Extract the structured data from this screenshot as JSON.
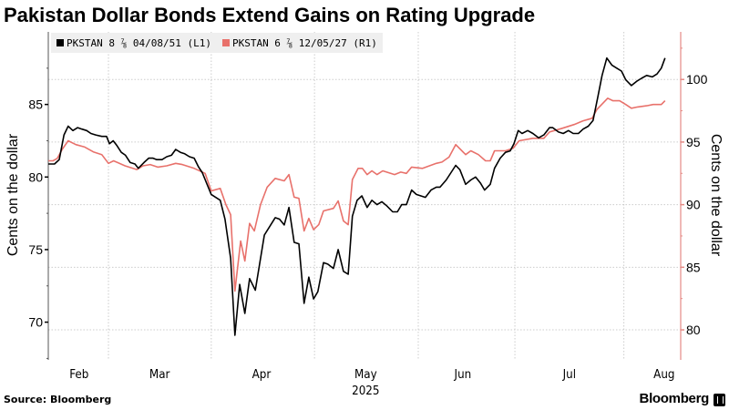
{
  "title": "Pakistan Dollar Bonds Extend Gains on Rating Upgrade",
  "source": "Source: Bloomberg",
  "brand": "Bloomberg",
  "colors": {
    "l1": "#000000",
    "r1": "#e8716b",
    "right_axis": "#e58a85",
    "grid": "#cccccc"
  },
  "chart_data": {
    "type": "line",
    "title": "Pakistan Dollar Bonds Extend Gains on Rating Upgrade",
    "x_unit": "trading days since start of series",
    "xlim": [
      0,
      133.5
    ],
    "x_ticks": [
      {
        "label": "Feb",
        "pos": 6.5
      },
      {
        "label": "Mar",
        "pos": 23.5
      },
      {
        "label": "Apr",
        "pos": 45
      },
      {
        "label": "May",
        "pos": 67
      },
      {
        "label": "Jun",
        "pos": 87.5
      },
      {
        "label": "Jul",
        "pos": 110
      },
      {
        "label": "Aug",
        "pos": 130
      }
    ],
    "x_year_label": {
      "label": "2025",
      "pos": 67
    },
    "month_boundaries": [
      12.7,
      34.4,
      56.2,
      78.1,
      98.5,
      121.5
    ],
    "left_axis": {
      "label": "Cents on the dollar",
      "ylim": [
        67.4,
        90.0
      ],
      "ticks": [
        70,
        75,
        80,
        85
      ],
      "minor": [
        67.5,
        72.5,
        77.5,
        82.5,
        87.5
      ]
    },
    "right_axis": {
      "label": "Cents on the dollar",
      "ylim": [
        77.6,
        103.8
      ],
      "ticks": [
        80,
        85,
        90,
        95,
        100
      ],
      "minor": [
        77.5,
        82.5,
        87.5,
        92.5,
        97.5,
        102.5
      ]
    },
    "grid": "dotted; horizontal at right-axis ticks, vertical at month boundaries",
    "legend_placement": "top-left",
    "series": [
      {
        "name": "PKSTAN 8 ⅞ 04/08/51 (L1)",
        "axis": "left",
        "points": [
          [
            0,
            80.9
          ],
          [
            1.3,
            80.9
          ],
          [
            2.3,
            81.2
          ],
          [
            2.9,
            82.2
          ],
          [
            3.3,
            82.9
          ],
          [
            4.2,
            83.5
          ],
          [
            5.2,
            83.2
          ],
          [
            6.2,
            83.4
          ],
          [
            7.1,
            83.3
          ],
          [
            8.1,
            83.2
          ],
          [
            9.0,
            83.0
          ],
          [
            10.0,
            82.9
          ],
          [
            11.3,
            82.8
          ],
          [
            12.3,
            82.8
          ],
          [
            12.9,
            82.3
          ],
          [
            13.7,
            82.5
          ],
          [
            14.4,
            82.2
          ],
          [
            15.4,
            81.7
          ],
          [
            16.3,
            81.5
          ],
          [
            17.3,
            81.0
          ],
          [
            18.3,
            80.9
          ],
          [
            19.0,
            80.6
          ],
          [
            20.2,
            81.0
          ],
          [
            21.2,
            81.3
          ],
          [
            22.1,
            81.3
          ],
          [
            22.9,
            81.2
          ],
          [
            24.0,
            81.2
          ],
          [
            25.0,
            81.4
          ],
          [
            26.0,
            81.5
          ],
          [
            26.9,
            81.9
          ],
          [
            27.9,
            81.7
          ],
          [
            28.8,
            81.6
          ],
          [
            29.8,
            81.4
          ],
          [
            30.8,
            81.3
          ],
          [
            31.7,
            80.7
          ],
          [
            32.5,
            80.3
          ],
          [
            34.4,
            78.8
          ],
          [
            36.3,
            78.4
          ],
          [
            37.3,
            77.1
          ],
          [
            38.5,
            74.4
          ],
          [
            39.4,
            69.1
          ],
          [
            40.4,
            72.6
          ],
          [
            41.5,
            70.6
          ],
          [
            42.5,
            73.0
          ],
          [
            43.7,
            72.2
          ],
          [
            45.6,
            76.0
          ],
          [
            47.9,
            77.2
          ],
          [
            48.8,
            77.1
          ],
          [
            49.8,
            76.7
          ],
          [
            50.8,
            77.9
          ],
          [
            51.9,
            75.5
          ],
          [
            52.9,
            75.4
          ],
          [
            54.0,
            71.3
          ],
          [
            55.0,
            73.1
          ],
          [
            56.0,
            71.6
          ],
          [
            56.9,
            72.1
          ],
          [
            58.1,
            74.1
          ],
          [
            59.0,
            74.0
          ],
          [
            60.2,
            73.7
          ],
          [
            61.2,
            75.0
          ],
          [
            62.3,
            73.5
          ],
          [
            63.3,
            73.3
          ],
          [
            64.2,
            77.3
          ],
          [
            65.2,
            78.4
          ],
          [
            66.2,
            78.7
          ],
          [
            67.3,
            77.9
          ],
          [
            68.3,
            78.4
          ],
          [
            69.4,
            78.1
          ],
          [
            70.4,
            78.3
          ],
          [
            71.5,
            78.0
          ],
          [
            72.7,
            77.6
          ],
          [
            73.7,
            77.6
          ],
          [
            74.6,
            78.1
          ],
          [
            75.6,
            78.1
          ],
          [
            76.7,
            79.1
          ],
          [
            77.7,
            78.8
          ],
          [
            79.6,
            78.6
          ],
          [
            80.8,
            79.1
          ],
          [
            81.9,
            79.3
          ],
          [
            82.7,
            79.3
          ],
          [
            84.0,
            79.8
          ],
          [
            86.0,
            80.8
          ],
          [
            86.9,
            80.5
          ],
          [
            88.1,
            79.5
          ],
          [
            89.2,
            79.8
          ],
          [
            90.2,
            80.0
          ],
          [
            91.2,
            79.6
          ],
          [
            92.1,
            79.1
          ],
          [
            93.3,
            79.5
          ],
          [
            94.2,
            80.6
          ],
          [
            95.4,
            81.3
          ],
          [
            96.5,
            81.7
          ],
          [
            97.5,
            81.8
          ],
          [
            98.3,
            82.3
          ],
          [
            99.2,
            83.2
          ],
          [
            100.0,
            83.0
          ],
          [
            101.2,
            83.2
          ],
          [
            102.3,
            83.0
          ],
          [
            103.5,
            82.7
          ],
          [
            104.6,
            82.9
          ],
          [
            105.8,
            83.4
          ],
          [
            106.5,
            83.4
          ],
          [
            107.7,
            83.1
          ],
          [
            108.7,
            83.0
          ],
          [
            109.8,
            83.2
          ],
          [
            110.8,
            83.0
          ],
          [
            111.9,
            83.0
          ],
          [
            112.9,
            83.3
          ],
          [
            114.0,
            83.5
          ],
          [
            115.0,
            83.9
          ],
          [
            116.0,
            85.5
          ],
          [
            116.9,
            87.0
          ],
          [
            117.9,
            88.2
          ],
          [
            119.0,
            87.7
          ],
          [
            120.0,
            87.5
          ],
          [
            121.0,
            87.3
          ],
          [
            121.9,
            86.7
          ],
          [
            123.1,
            86.3
          ],
          [
            124.2,
            86.6
          ],
          [
            125.2,
            86.8
          ],
          [
            126.3,
            87.0
          ],
          [
            127.5,
            86.9
          ],
          [
            128.5,
            87.1
          ],
          [
            129.4,
            87.5
          ],
          [
            130.2,
            88.2
          ]
        ]
      },
      {
        "name": "PKSTAN 6 ⅞ 12/05/27 (R1)",
        "axis": "right",
        "points": [
          [
            0,
            93.5
          ],
          [
            1.0,
            93.5
          ],
          [
            1.9,
            93.7
          ],
          [
            2.9,
            94.4
          ],
          [
            4.2,
            95.1
          ],
          [
            5.8,
            94.8
          ],
          [
            7.7,
            94.6
          ],
          [
            9.6,
            94.2
          ],
          [
            11.3,
            94.0
          ],
          [
            12.7,
            93.3
          ],
          [
            13.8,
            93.5
          ],
          [
            16.2,
            93.1
          ],
          [
            18.7,
            92.8
          ],
          [
            20.0,
            93.1
          ],
          [
            21.5,
            93.2
          ],
          [
            23.1,
            93.0
          ],
          [
            25.0,
            93.1
          ],
          [
            26.9,
            93.3
          ],
          [
            28.3,
            93.2
          ],
          [
            30.8,
            92.9
          ],
          [
            33.1,
            92.5
          ],
          [
            34.4,
            91.1
          ],
          [
            36.3,
            91.3
          ],
          [
            37.5,
            90.0
          ],
          [
            38.5,
            89.2
          ],
          [
            39.4,
            83.1
          ],
          [
            40.6,
            87.1
          ],
          [
            41.5,
            85.5
          ],
          [
            42.5,
            88.5
          ],
          [
            43.5,
            87.9
          ],
          [
            44.8,
            90.0
          ],
          [
            46.2,
            91.4
          ],
          [
            47.9,
            92.1
          ],
          [
            49.8,
            91.9
          ],
          [
            50.8,
            92.4
          ],
          [
            51.9,
            90.6
          ],
          [
            52.9,
            90.5
          ],
          [
            54.0,
            87.9
          ],
          [
            55.0,
            88.9
          ],
          [
            56.0,
            88.0
          ],
          [
            57.1,
            88.4
          ],
          [
            58.1,
            89.5
          ],
          [
            60.2,
            89.7
          ],
          [
            61.2,
            90.3
          ],
          [
            62.3,
            88.7
          ],
          [
            63.3,
            88.4
          ],
          [
            64.2,
            92.0
          ],
          [
            65.4,
            92.9
          ],
          [
            66.3,
            92.9
          ],
          [
            67.3,
            92.4
          ],
          [
            68.3,
            92.7
          ],
          [
            69.4,
            92.4
          ],
          [
            70.6,
            92.7
          ],
          [
            73.1,
            92.4
          ],
          [
            74.4,
            92.6
          ],
          [
            75.6,
            92.5
          ],
          [
            76.7,
            93.0
          ],
          [
            79.0,
            92.9
          ],
          [
            81.9,
            93.3
          ],
          [
            83.1,
            93.4
          ],
          [
            84.6,
            93.8
          ],
          [
            86.0,
            94.8
          ],
          [
            88.1,
            94.0
          ],
          [
            89.2,
            94.3
          ],
          [
            90.8,
            94.0
          ],
          [
            92.3,
            93.5
          ],
          [
            93.3,
            93.5
          ],
          [
            94.2,
            94.3
          ],
          [
            96.5,
            94.3
          ],
          [
            98.1,
            94.5
          ],
          [
            99.4,
            95.1
          ],
          [
            102.3,
            95.3
          ],
          [
            104.6,
            95.3
          ],
          [
            105.8,
            95.8
          ],
          [
            108.5,
            96.1
          ],
          [
            111.0,
            96.4
          ],
          [
            112.9,
            96.7
          ],
          [
            114.8,
            96.9
          ],
          [
            115.8,
            97.6
          ],
          [
            118.1,
            98.5
          ],
          [
            119.2,
            98.3
          ],
          [
            120.6,
            98.3
          ],
          [
            121.9,
            98.0
          ],
          [
            123.1,
            97.7
          ],
          [
            124.4,
            97.8
          ],
          [
            126.3,
            97.9
          ],
          [
            127.7,
            98.0
          ],
          [
            129.4,
            98.0
          ],
          [
            130.2,
            98.3
          ]
        ]
      }
    ]
  }
}
